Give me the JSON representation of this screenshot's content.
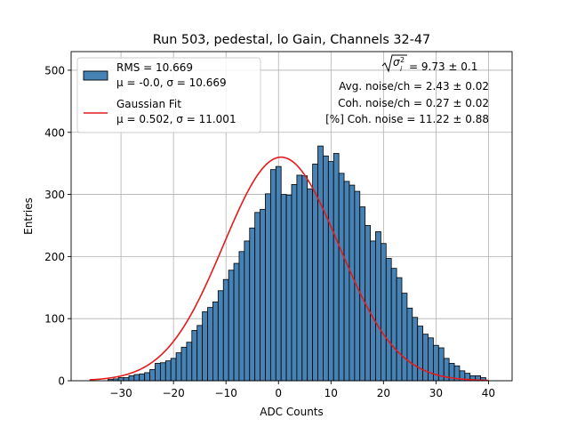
{
  "chart_data": {
    "type": "bar",
    "title": "Run 503, pedestal, lo Gain, Channels 32-47",
    "xlabel": "ADC Counts",
    "ylabel": "Entries",
    "xlim": [
      -39.5,
      44.5
    ],
    "ylim": [
      0,
      530
    ],
    "xticks": [
      "−30",
      "−20",
      "−10",
      "0",
      "10",
      "20",
      "30",
      "40"
    ],
    "xtick_values": [
      -30,
      -20,
      -10,
      0,
      10,
      20,
      30,
      40
    ],
    "yticks": [
      "0",
      "100",
      "200",
      "300",
      "400",
      "500"
    ],
    "ytick_values": [
      0,
      100,
      200,
      300,
      400,
      500
    ],
    "grid": true,
    "bar_color": "#4682b4",
    "fit_color": "#e41a1c",
    "legend": {
      "placement": "top-left",
      "entries": [
        {
          "line1": "RMS = 10.669",
          "line2": "μ = -0.0, σ = 10.669"
        },
        {
          "line1": "Gaussian Fit",
          "line2": "μ = 0.502, σ = 11.001"
        }
      ]
    },
    "annotations": {
      "sigma_value": " = 9.73 ± 0.1",
      "lines": [
        "Avg. noise/ch = 2.43 ± 0.02",
        "Coh. noise/ch = 0.27 ± 0.02",
        "[%] Coh. noise = 11.22 ± 0.88"
      ]
    },
    "histogram": {
      "bin_start": -32.5,
      "bin_width": 1,
      "values": [
        2,
        3,
        5,
        5,
        8,
        10,
        11,
        13,
        18,
        28,
        29,
        32,
        36,
        45,
        54,
        62,
        81,
        89,
        111,
        118,
        127,
        145,
        163,
        178,
        189,
        208,
        225,
        246,
        271,
        276,
        301,
        340,
        345,
        300,
        299,
        316,
        331,
        330,
        309,
        349,
        378,
        362,
        353,
        366,
        334,
        321,
        315,
        305,
        280,
        250,
        225,
        240,
        221,
        197,
        181,
        166,
        141,
        117,
        102,
        88,
        75,
        69,
        57,
        53,
        36,
        28,
        24,
        16,
        12,
        8,
        8,
        5
      ]
    },
    "fit": {
      "mu": 0.502,
      "sigma": 11.001,
      "amplitude": 360,
      "x_range": [
        -36,
        40
      ]
    }
  }
}
